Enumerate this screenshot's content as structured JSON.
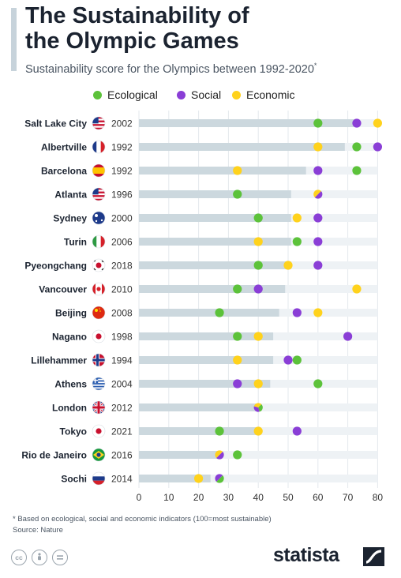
{
  "header": {
    "title_line1": "The Sustainability of",
    "title_line2": "the Olympic Games",
    "subtitle": "Sustainability score for the Olympics between 1992-2020",
    "subtitle_mark": "*"
  },
  "colors": {
    "ecological": "#5cc23a",
    "social": "#8a3ed6",
    "economic": "#ffd21c",
    "bar": "#ccd8de",
    "track": "#eef2f5"
  },
  "chart_data": {
    "type": "dot",
    "title": "The Sustainability of the Olympic Games",
    "subtitle": "Sustainability score for the Olympics between 1992-2020*",
    "xlim": [
      0,
      80
    ],
    "xticks": [
      0,
      10,
      20,
      30,
      40,
      50,
      60,
      70,
      80
    ],
    "legend": [
      "Ecological",
      "Social",
      "Economic"
    ],
    "legend_position": "top",
    "rows": [
      {
        "city": "Salt Lake City",
        "year": "2002",
        "flag": "us",
        "overall": 72,
        "ecological": 60,
        "social": 73,
        "economic": 80
      },
      {
        "city": "Albertville",
        "year": "1992",
        "flag": "fr",
        "overall": 69,
        "ecological": 73,
        "social": 80,
        "economic": 60
      },
      {
        "city": "Barcelona",
        "year": "1992",
        "flag": "es",
        "overall": 56,
        "ecological": 73,
        "social": 60,
        "economic": 33
      },
      {
        "city": "Atlanta",
        "year": "1996",
        "flag": "us",
        "overall": 51,
        "ecological": 33,
        "social": 60,
        "economic": 60
      },
      {
        "city": "Sydney",
        "year": "2000",
        "flag": "au",
        "overall": 51,
        "ecological": 40,
        "social": 60,
        "economic": 53
      },
      {
        "city": "Turin",
        "year": "2006",
        "flag": "it",
        "overall": 51,
        "ecological": 53,
        "social": 60,
        "economic": 40
      },
      {
        "city": "Pyeongchang",
        "year": "2018",
        "flag": "kr",
        "overall": 51,
        "ecological": 40,
        "social": 60,
        "economic": 50
      },
      {
        "city": "Vancouver",
        "year": "2010",
        "flag": "ca",
        "overall": 49,
        "ecological": 33,
        "social": 40,
        "economic": 73
      },
      {
        "city": "Beijing",
        "year": "2008",
        "flag": "cn",
        "overall": 47,
        "ecological": 27,
        "social": 53,
        "economic": 60
      },
      {
        "city": "Nagano",
        "year": "1998",
        "flag": "jp",
        "overall": 45,
        "ecological": 33,
        "social": 70,
        "economic": 40
      },
      {
        "city": "Lillehammer",
        "year": "1994",
        "flag": "no",
        "overall": 45,
        "ecological": 53,
        "social": 50,
        "economic": 33
      },
      {
        "city": "Athens",
        "year": "2004",
        "flag": "gr",
        "overall": 44,
        "ecological": 60,
        "social": 33,
        "economic": 40
      },
      {
        "city": "London",
        "year": "2012",
        "flag": "gb",
        "overall": 41,
        "ecological": 40,
        "social": 40,
        "economic": 40
      },
      {
        "city": "Tokyo",
        "year": "2021",
        "flag": "jp",
        "overall": 40,
        "ecological": 27,
        "social": 53,
        "economic": 40
      },
      {
        "city": "Rio de Janeiro",
        "year": "2016",
        "flag": "br",
        "overall": 27,
        "ecological": 33,
        "social": 27,
        "economic": 27
      },
      {
        "city": "Sochi",
        "year": "2014",
        "flag": "ru",
        "overall": 24,
        "ecological": 27,
        "social": 27,
        "economic": 20
      }
    ]
  },
  "footer": {
    "note": "* Based on ecological, social and economic indicators (100=most sustainable)",
    "source": "Source: Nature",
    "cc_icons": [
      "cc-icon",
      "attribution-icon",
      "no-derivatives-icon"
    ],
    "brand": "statista"
  }
}
